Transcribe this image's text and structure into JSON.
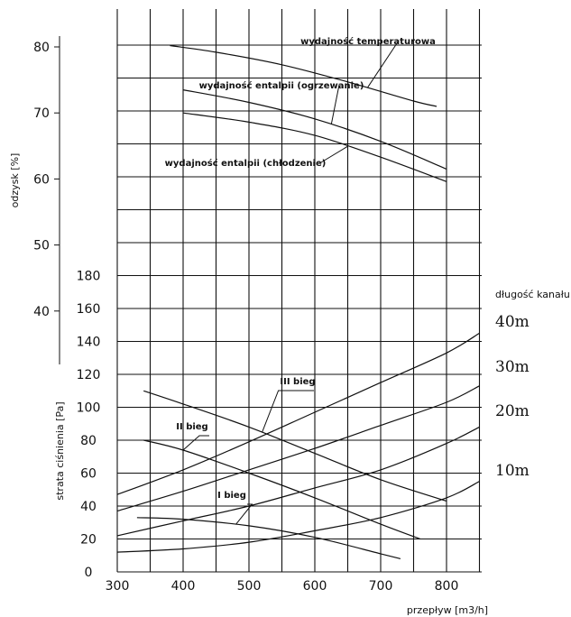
{
  "chart_data": [
    {
      "type": "line",
      "title": "",
      "xlabel": "przepływ [m3/h]",
      "ylabel": "odzysk [%]",
      "xlim": [
        300,
        850
      ],
      "ylim": [
        35,
        80
      ],
      "x_ticks": [
        "300",
        "400",
        "500",
        "600",
        "700",
        "800"
      ],
      "y_ticks": [
        "80",
        "70",
        "60",
        "50",
        "40"
      ],
      "grid": true,
      "series": [
        {
          "name": "wydajność temperaturowa",
          "x": [
            380,
            450,
            550,
            650,
            750,
            785
          ],
          "y": [
            80.2,
            79.2,
            77.3,
            74.7,
            71.8,
            71.0
          ]
        },
        {
          "name": "wydajność entalpii (ogrzewanie)",
          "x": [
            400,
            500,
            600,
            700,
            800
          ],
          "y": [
            73.5,
            71.6,
            69.1,
            65.7,
            61.5
          ]
        },
        {
          "name": "wydajność entalpii (chłodzenie)",
          "x": [
            400,
            500,
            600,
            700,
            800
          ],
          "y": [
            70.0,
            68.6,
            66.6,
            63.3,
            59.6
          ]
        }
      ]
    },
    {
      "type": "line",
      "title": "",
      "xlabel": "przepływ [m3/h]",
      "ylabel": "strata ciśnienia [Pa]",
      "xlim": [
        300,
        850
      ],
      "ylim": [
        0,
        180
      ],
      "x_ticks": [
        "300",
        "400",
        "500",
        "600",
        "700",
        "800"
      ],
      "y_ticks": [
        "180",
        "160",
        "140",
        "120",
        "100",
        "80",
        "60",
        "40",
        "20",
        "0"
      ],
      "grid": true,
      "fan_curves": [
        {
          "name": "III bieg",
          "x": [
            340,
            400,
            500,
            600,
            700,
            800
          ],
          "y": [
            110,
            102,
            88,
            72,
            56,
            43
          ]
        },
        {
          "name": "II bieg",
          "x": [
            340,
            400,
            500,
            600,
            700,
            760
          ],
          "y": [
            80,
            74,
            60,
            45,
            29,
            20
          ]
        },
        {
          "name": "I bieg",
          "x": [
            330,
            400,
            500,
            600,
            700,
            730
          ],
          "y": [
            33,
            32,
            28,
            21,
            11,
            8
          ]
        }
      ],
      "duct_curves": [
        {
          "name": "40m",
          "x": [
            300,
            400,
            500,
            600,
            700,
            800,
            850
          ],
          "y": [
            47,
            62,
            79,
            97,
            115,
            133,
            145
          ]
        },
        {
          "name": "30m",
          "x": [
            300,
            400,
            500,
            600,
            700,
            800,
            850
          ],
          "y": [
            37,
            49,
            62,
            75,
            89,
            103,
            113
          ]
        },
        {
          "name": "20m",
          "x": [
            300,
            400,
            500,
            600,
            700,
            800,
            850
          ],
          "y": [
            22,
            31,
            40,
            51,
            62,
            78,
            88
          ]
        },
        {
          "name": "10m",
          "x": [
            300,
            400,
            500,
            600,
            700,
            800,
            850
          ],
          "y": [
            12,
            14,
            18,
            25,
            33,
            45,
            55
          ]
        }
      ],
      "legend_title": "długość kanału"
    }
  ]
}
